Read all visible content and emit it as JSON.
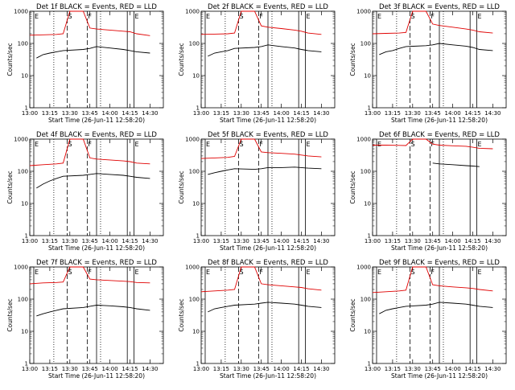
{
  "colors": {
    "events": "#000000",
    "lld": "#e00000",
    "background": "#ffffff"
  },
  "start_time_label": "Start Time (26-Jun-11 12:58:20)",
  "chart_data": [
    {
      "type": "line",
      "title": "Det 1f BLACK = Events, RED = LLD",
      "xlabel": "Start Time (26-Jun-11 12:58:20)",
      "ylabel": "Counts/sec",
      "yscale": "log",
      "ylim": [
        1,
        1000
      ],
      "xticks": [
        "13:00",
        "13:15",
        "13:30",
        "13:45",
        "14:00",
        "14:15",
        "14:30"
      ],
      "yticks": [
        "1",
        "10",
        "100",
        "1000"
      ],
      "markers": [
        "E",
        "S",
        "F",
        "E"
      ],
      "series": [
        {
          "name": "Events",
          "color": "#000000",
          "x": [
            "13:05",
            "13:10",
            "13:15",
            "13:20",
            "13:25",
            "13:40",
            "13:45",
            "13:50",
            "14:00",
            "14:10",
            "14:15",
            "14:20",
            "14:30"
          ],
          "values": [
            35,
            45,
            50,
            55,
            60,
            65,
            70,
            80,
            72,
            65,
            60,
            55,
            50
          ]
        },
        {
          "name": "LLD",
          "color": "#e00000",
          "x": [
            "13:00",
            "13:10",
            "13:20",
            "13:25",
            "13:30",
            "13:40",
            "13:45",
            "13:50",
            "14:00",
            "14:10",
            "14:15",
            "14:20",
            "14:30"
          ],
          "values": [
            180,
            185,
            190,
            200,
            1000,
            1000,
            300,
            280,
            260,
            240,
            230,
            200,
            175
          ]
        }
      ]
    },
    {
      "type": "line",
      "title": "Det 2f BLACK = Events, RED = LLD",
      "xlabel": "Start Time (26-Jun-11 12:58:20)",
      "ylabel": "Counts/sec",
      "yscale": "log",
      "ylim": [
        1,
        1000
      ],
      "xticks": [
        "13:00",
        "13:15",
        "13:30",
        "13:45",
        "14:00",
        "14:15",
        "14:30"
      ],
      "yticks": [
        "1",
        "10",
        "100",
        "1000"
      ],
      "markers": [
        "E",
        "S",
        "F",
        "E"
      ],
      "series": [
        {
          "name": "Events",
          "color": "#000000",
          "x": [
            "13:05",
            "13:10",
            "13:15",
            "13:20",
            "13:25",
            "13:40",
            "13:45",
            "13:50",
            "14:00",
            "14:10",
            "14:15",
            "14:20",
            "14:30"
          ],
          "values": [
            40,
            50,
            55,
            60,
            70,
            75,
            80,
            90,
            80,
            72,
            65,
            60,
            55
          ]
        },
        {
          "name": "LLD",
          "color": "#e00000",
          "x": [
            "13:00",
            "13:10",
            "13:20",
            "13:25",
            "13:30",
            "13:40",
            "13:45",
            "13:50",
            "14:00",
            "14:10",
            "14:15",
            "14:20",
            "14:30"
          ],
          "values": [
            190,
            195,
            200,
            210,
            1000,
            1000,
            350,
            320,
            290,
            260,
            240,
            210,
            190
          ]
        }
      ]
    },
    {
      "type": "line",
      "title": "Det 3f BLACK = Events, RED = LLD",
      "xlabel": "Start Time (26-Jun-11 12:58:20)",
      "ylabel": "Counts/sec",
      "yscale": "log",
      "ylim": [
        1,
        1000
      ],
      "xticks": [
        "13:00",
        "13:15",
        "13:30",
        "13:45",
        "14:00",
        "14:15",
        "14:30"
      ],
      "yticks": [
        "1",
        "10",
        "100",
        "1000"
      ],
      "markers": [
        "E",
        "S",
        "F",
        "E"
      ],
      "series": [
        {
          "name": "Events",
          "color": "#000000",
          "x": [
            "13:05",
            "13:10",
            "13:15",
            "13:20",
            "13:25",
            "13:40",
            "13:45",
            "13:50",
            "14:00",
            "14:10",
            "14:15",
            "14:20",
            "14:30"
          ],
          "values": [
            45,
            55,
            60,
            70,
            80,
            85,
            90,
            100,
            90,
            82,
            75,
            65,
            60
          ]
        },
        {
          "name": "LLD",
          "color": "#e00000",
          "x": [
            "13:00",
            "13:10",
            "13:20",
            "13:25",
            "13:30",
            "13:40",
            "13:45",
            "13:50",
            "14:00",
            "14:10",
            "14:15",
            "14:20",
            "14:30"
          ],
          "values": [
            200,
            205,
            210,
            220,
            1000,
            1000,
            400,
            360,
            320,
            280,
            260,
            230,
            210
          ]
        }
      ]
    },
    {
      "type": "line",
      "title": "Det 4f BLACK = Events, RED = LLD",
      "xlabel": "Start Time (26-Jun-11 12:58:20)",
      "ylabel": "Counts/sec",
      "yscale": "log",
      "ylim": [
        1,
        1000
      ],
      "xticks": [
        "13:00",
        "13:15",
        "13:30",
        "13:45",
        "14:00",
        "14:15",
        "14:30"
      ],
      "yticks": [
        "1",
        "10",
        "100",
        "1000"
      ],
      "markers": [
        "E",
        "S",
        "F",
        "E"
      ],
      "series": [
        {
          "name": "Events",
          "color": "#000000",
          "x": [
            "13:05",
            "13:10",
            "13:15",
            "13:20",
            "13:25",
            "13:40",
            "13:45",
            "13:50",
            "14:00",
            "14:10",
            "14:15",
            "14:20",
            "14:30"
          ],
          "values": [
            30,
            40,
            50,
            60,
            70,
            75,
            80,
            85,
            80,
            75,
            70,
            65,
            60
          ]
        },
        {
          "name": "LLD",
          "color": "#e00000",
          "x": [
            "13:00",
            "13:10",
            "13:20",
            "13:25",
            "13:30",
            "13:40",
            "13:45",
            "13:50",
            "14:00",
            "14:10",
            "14:15",
            "14:20",
            "14:30"
          ],
          "values": [
            150,
            160,
            170,
            180,
            1000,
            1000,
            260,
            240,
            225,
            210,
            200,
            180,
            170
          ]
        }
      ]
    },
    {
      "type": "line",
      "title": "Det 5f BLACK = Events, RED = LLD",
      "xlabel": "Start Time (26-Jun-11 12:58:20)",
      "ylabel": "Counts/sec",
      "yscale": "log",
      "ylim": [
        1,
        1000
      ],
      "xticks": [
        "13:00",
        "13:15",
        "13:30",
        "13:45",
        "14:00",
        "14:15",
        "14:30"
      ],
      "yticks": [
        "1",
        "10",
        "100",
        "1000"
      ],
      "markers": [
        "E",
        "S",
        "F",
        "E"
      ],
      "series": [
        {
          "name": "Events",
          "color": "#000000",
          "x": [
            "13:05",
            "13:10",
            "13:15",
            "13:20",
            "13:25",
            "13:40",
            "13:45",
            "13:50",
            "14:00",
            "14:10",
            "14:15",
            "14:20",
            "14:30"
          ],
          "values": [
            80,
            90,
            100,
            110,
            120,
            115,
            120,
            130,
            130,
            135,
            130,
            125,
            120
          ]
        },
        {
          "name": "LLD",
          "color": "#e00000",
          "x": [
            "13:00",
            "13:10",
            "13:20",
            "13:25",
            "13:30",
            "13:40",
            "13:45",
            "13:50",
            "14:00",
            "14:10",
            "14:15",
            "14:20",
            "14:30"
          ],
          "values": [
            250,
            260,
            270,
            290,
            1000,
            1000,
            400,
            380,
            360,
            340,
            320,
            300,
            280
          ]
        }
      ]
    },
    {
      "type": "line",
      "title": "Det 6f BLACK = Events, RED = LLD",
      "xlabel": "Start Time (26-Jun-11 12:58:20)",
      "ylabel": "Counts/sec",
      "yscale": "log",
      "ylim": [
        1,
        1000
      ],
      "xticks": [
        "13:00",
        "13:15",
        "13:30",
        "13:45",
        "14:00",
        "14:15",
        "14:30"
      ],
      "yticks": [
        "1",
        "10",
        "100",
        "1000"
      ],
      "markers": [
        "E",
        "S",
        "F",
        "E"
      ],
      "series": [
        {
          "name": "Events",
          "color": "#000000",
          "x": [
            "13:45",
            "13:50",
            "14:00",
            "14:10",
            "14:15",
            "14:20"
          ],
          "values": [
            180,
            170,
            160,
            150,
            145,
            140
          ]
        },
        {
          "name": "LLD",
          "color": "#e00000",
          "x": [
            "13:00",
            "13:10",
            "13:20",
            "13:25",
            "13:30",
            "13:40",
            "13:45",
            "13:50",
            "14:00",
            "14:10",
            "14:15",
            "14:20",
            "14:30"
          ],
          "values": [
            650,
            650,
            640,
            630,
            1000,
            1000,
            700,
            650,
            620,
            600,
            560,
            520,
            500
          ]
        }
      ]
    },
    {
      "type": "line",
      "title": "Det 7f BLACK = Events, RED = LLD",
      "xlabel": "Start Time (26-Jun-11 12:58:20)",
      "ylabel": "Counts/sec",
      "yscale": "log",
      "ylim": [
        1,
        1000
      ],
      "xticks": [
        "13:00",
        "13:15",
        "13:30",
        "13:45",
        "14:00",
        "14:15",
        "14:30"
      ],
      "yticks": [
        "1",
        "10",
        "100",
        "1000"
      ],
      "markers": [
        "E",
        "S",
        "F",
        "E"
      ],
      "series": [
        {
          "name": "Events",
          "color": "#000000",
          "x": [
            "13:05",
            "13:10",
            "13:15",
            "13:20",
            "13:25",
            "13:40",
            "13:45",
            "13:50",
            "14:00",
            "14:10",
            "14:15",
            "14:20",
            "14:30"
          ],
          "values": [
            30,
            35,
            40,
            45,
            50,
            55,
            60,
            65,
            62,
            58,
            55,
            50,
            45
          ]
        },
        {
          "name": "LLD",
          "color": "#e00000",
          "x": [
            "13:00",
            "13:10",
            "13:20",
            "13:25",
            "13:30",
            "13:40",
            "13:45",
            "13:50",
            "14:00",
            "14:10",
            "14:15",
            "14:20",
            "14:30"
          ],
          "values": [
            300,
            320,
            330,
            340,
            1000,
            1000,
            420,
            400,
            380,
            360,
            350,
            330,
            320
          ]
        }
      ]
    },
    {
      "type": "line",
      "title": "Det 8f BLACK = Events, RED = LLD",
      "xlabel": "Start Time (26-Jun-11 12:58:20)",
      "ylabel": "Counts/sec",
      "yscale": "log",
      "ylim": [
        1,
        1000
      ],
      "xticks": [
        "13:00",
        "13:15",
        "13:30",
        "13:45",
        "14:00",
        "14:15",
        "14:30"
      ],
      "yticks": [
        "1",
        "10",
        "100",
        "1000"
      ],
      "markers": [
        "E",
        "S",
        "F",
        "E"
      ],
      "series": [
        {
          "name": "Events",
          "color": "#000000",
          "x": [
            "13:05",
            "13:10",
            "13:15",
            "13:20",
            "13:25",
            "13:40",
            "13:45",
            "13:50",
            "14:00",
            "14:10",
            "14:15",
            "14:20",
            "14:30"
          ],
          "values": [
            40,
            50,
            55,
            60,
            65,
            70,
            75,
            80,
            75,
            70,
            65,
            60,
            55
          ]
        },
        {
          "name": "LLD",
          "color": "#e00000",
          "x": [
            "13:00",
            "13:10",
            "13:20",
            "13:25",
            "13:30",
            "13:40",
            "13:45",
            "13:50",
            "14:00",
            "14:10",
            "14:15",
            "14:20",
            "14:30"
          ],
          "values": [
            170,
            180,
            190,
            200,
            1000,
            1000,
            300,
            280,
            260,
            240,
            230,
            210,
            190
          ]
        }
      ]
    },
    {
      "type": "line",
      "title": "Det 9f BLACK = Events, RED = LLD",
      "xlabel": "Start Time (26-Jun-11 12:58:20)",
      "ylabel": "Counts/sec",
      "yscale": "log",
      "ylim": [
        1,
        1000
      ],
      "xticks": [
        "13:00",
        "13:15",
        "13:30",
        "13:45",
        "14:00",
        "14:15",
        "14:30"
      ],
      "yticks": [
        "1",
        "10",
        "100",
        "1000"
      ],
      "markers": [
        "E",
        "S",
        "F",
        "E"
      ],
      "series": [
        {
          "name": "Events",
          "color": "#000000",
          "x": [
            "13:05",
            "13:10",
            "13:15",
            "13:20",
            "13:25",
            "13:40",
            "13:45",
            "13:50",
            "14:00",
            "14:10",
            "14:15",
            "14:20",
            "14:30"
          ],
          "values": [
            35,
            45,
            50,
            55,
            60,
            65,
            70,
            80,
            75,
            70,
            65,
            60,
            55
          ]
        },
        {
          "name": "LLD",
          "color": "#e00000",
          "x": [
            "13:00",
            "13:10",
            "13:20",
            "13:25",
            "13:30",
            "13:40",
            "13:45",
            "13:50",
            "14:00",
            "14:10",
            "14:15",
            "14:20",
            "14:30"
          ],
          "values": [
            160,
            170,
            180,
            190,
            1000,
            1000,
            280,
            260,
            240,
            225,
            215,
            200,
            180
          ]
        }
      ]
    }
  ]
}
